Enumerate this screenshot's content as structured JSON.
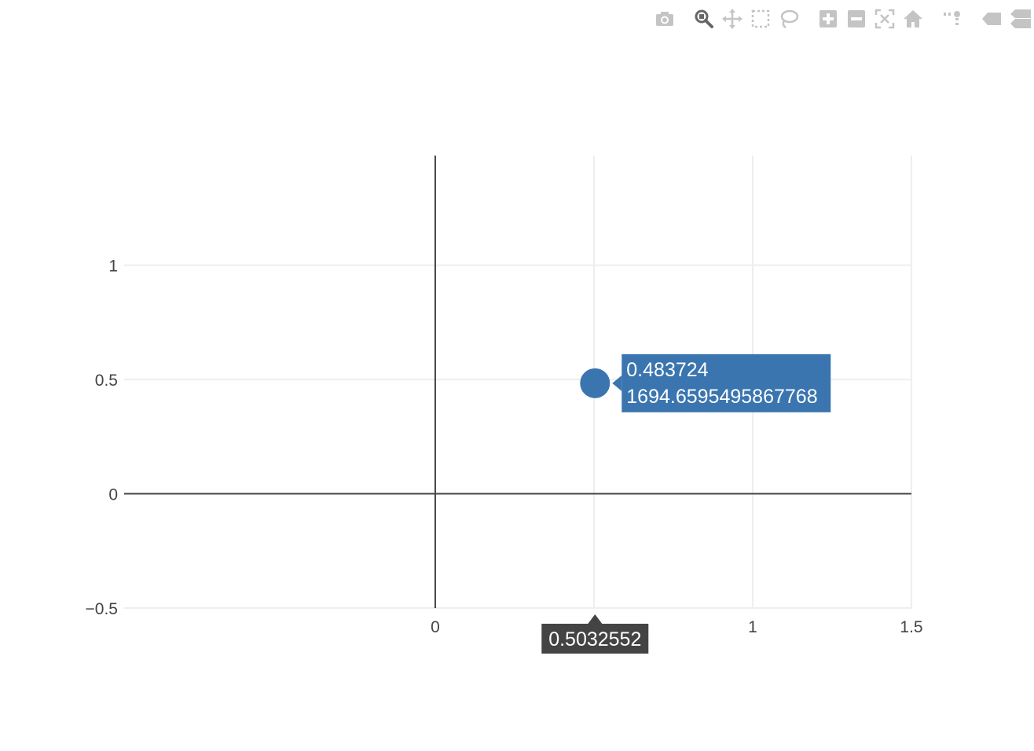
{
  "toolbar": {
    "buttons": [
      {
        "name": "camera-icon",
        "title": "Download plot as a png"
      },
      {
        "name": "zoom-icon",
        "title": "Zoom",
        "active": true
      },
      {
        "name": "pan-icon",
        "title": "Pan"
      },
      {
        "name": "box-select-icon",
        "title": "Box Select"
      },
      {
        "name": "lasso-select-icon",
        "title": "Lasso Select"
      },
      {
        "name": "zoom-in-icon",
        "title": "Zoom in"
      },
      {
        "name": "zoom-out-icon",
        "title": "Zoom out"
      },
      {
        "name": "autoscale-icon",
        "title": "Autoscale"
      },
      {
        "name": "home-icon",
        "title": "Reset axes"
      },
      {
        "name": "spike-lines-icon",
        "title": "Toggle Spike Lines"
      },
      {
        "name": "hover-closest-icon",
        "title": "Show closest data on hover"
      },
      {
        "name": "hover-compare-icon",
        "title": "Compare data on hover"
      }
    ],
    "icon_color": "#c4c4c4",
    "active_icon_color": "#666666"
  },
  "chart_data": {
    "type": "scatter",
    "title": "",
    "xlabel": "",
    "ylabel": "",
    "xlim": [
      -0.98,
      1.5
    ],
    "ylim": [
      -0.5,
      1.48
    ],
    "x_ticks": [
      0,
      0.5,
      1,
      1.5
    ],
    "x_tick_labels": [
      "0",
      "",
      "1",
      "1.5"
    ],
    "y_ticks": [
      -0.5,
      0,
      0.5,
      1
    ],
    "y_tick_labels": [
      "−0.5",
      "0",
      "0.5",
      "1"
    ],
    "grid": true,
    "series": [
      {
        "x": [
          0.5032552
        ],
        "y": [
          0.483724
        ],
        "color": "#3a75af"
      }
    ],
    "hover": {
      "point_label_lines": [
        "0.483724",
        "1694.6595495867768"
      ],
      "x_label": "0.5032552",
      "point_bg": "#3a75af",
      "axis_bg": "#444444"
    }
  }
}
